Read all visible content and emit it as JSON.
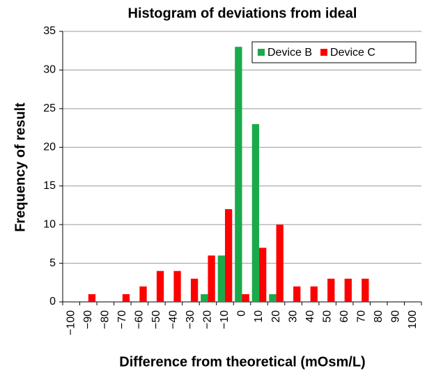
{
  "chart_data": {
    "type": "bar",
    "title": "Histogram of deviations from ideal",
    "x_label": "Difference from theoretical (mOsm/L)",
    "y_label": "Frequency of result",
    "categories": [
      "−100",
      "−90",
      "−80",
      "−70",
      "−60",
      "−50",
      "−40",
      "−30",
      "−20",
      "−10",
      "0",
      "10",
      "20",
      "30",
      "40",
      "50",
      "60",
      "70",
      "80",
      "90",
      "100"
    ],
    "series": [
      {
        "name": "Device B",
        "color": "#1aaa4b",
        "values": [
          0,
          0,
          0,
          0,
          0,
          0,
          0,
          0,
          1,
          6,
          33,
          23,
          1,
          0,
          0,
          0,
          0,
          0,
          0,
          0,
          0
        ]
      },
      {
        "name": "Device C",
        "color": "#ff0000",
        "values": [
          0,
          1,
          0,
          1,
          2,
          4,
          4,
          3,
          6,
          12,
          1,
          7,
          10,
          2,
          2,
          3,
          3,
          3,
          0,
          0,
          0
        ]
      }
    ],
    "ylim": [
      0,
      35
    ],
    "yticks": [
      0,
      5,
      10,
      15,
      20,
      25,
      30,
      35
    ],
    "grid": true,
    "legend": "upper right"
  }
}
